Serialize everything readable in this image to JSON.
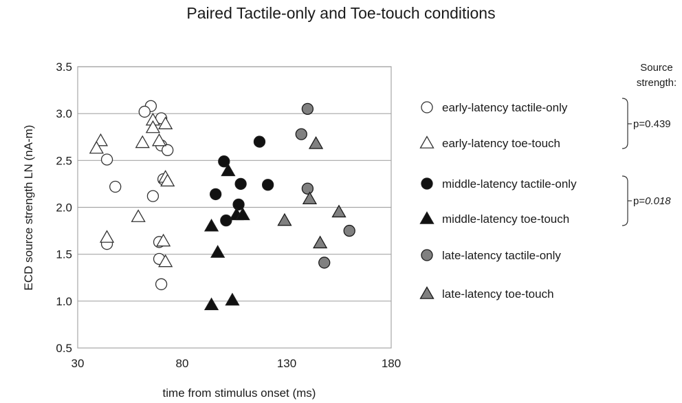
{
  "chart_data": {
    "type": "scatter",
    "title": "Paired Tactile-only and Toe-touch conditions",
    "xlabel": "time from stimulus onset (ms)",
    "ylabel": "ECD source strength LN (nA-m)",
    "xlim": [
      30,
      180
    ],
    "ylim": [
      0.5,
      3.5
    ],
    "xticks": [
      "30",
      "80",
      "130",
      "180"
    ],
    "yticks": [
      "0.5",
      "1.0",
      "1.5",
      "2.0",
      "2.5",
      "3.0",
      "3.5"
    ],
    "grid": "horizontal",
    "legend_position": "right",
    "series": [
      {
        "name": "early-latency tactile-only",
        "marker": "circle",
        "color": "#ffffff",
        "points": [
          [
            65,
            3.08
          ],
          [
            62,
            3.02
          ],
          [
            70,
            2.95
          ],
          [
            70,
            2.66
          ],
          [
            73,
            2.61
          ],
          [
            44,
            2.51
          ],
          [
            48,
            2.22
          ],
          [
            71,
            2.3
          ],
          [
            66,
            2.12
          ],
          [
            44,
            1.61
          ],
          [
            69,
            1.63
          ],
          [
            69,
            1.45
          ],
          [
            70,
            1.18
          ]
        ]
      },
      {
        "name": "early-latency toe-touch",
        "marker": "triangle",
        "color": "#ffffff",
        "points": [
          [
            66,
            2.93
          ],
          [
            72,
            2.89
          ],
          [
            66,
            2.85
          ],
          [
            41,
            2.71
          ],
          [
            69,
            2.71
          ],
          [
            61,
            2.69
          ],
          [
            39,
            2.63
          ],
          [
            72,
            2.32
          ],
          [
            73,
            2.28
          ],
          [
            59,
            1.9
          ],
          [
            44,
            1.68
          ],
          [
            71,
            1.64
          ],
          [
            72,
            1.42
          ]
        ]
      },
      {
        "name": "middle-latency tactile-only",
        "marker": "circle",
        "color": "#111111",
        "points": [
          [
            117,
            2.7
          ],
          [
            100,
            2.49
          ],
          [
            96,
            2.14
          ],
          [
            108,
            2.25
          ],
          [
            121,
            2.24
          ],
          [
            107,
            2.03
          ],
          [
            101,
            1.86
          ]
        ]
      },
      {
        "name": "middle-latency toe-touch",
        "marker": "triangle",
        "color": "#111111",
        "points": [
          [
            102,
            2.39
          ],
          [
            106,
            1.92
          ],
          [
            109,
            1.92
          ],
          [
            94,
            1.8
          ],
          [
            97,
            1.52
          ],
          [
            104,
            1.01
          ],
          [
            94,
            0.96
          ]
        ]
      },
      {
        "name": "late-latency tactile-only",
        "marker": "circle",
        "color": "#808080",
        "points": [
          [
            140,
            3.05
          ],
          [
            137,
            2.78
          ],
          [
            140,
            2.2
          ],
          [
            160,
            1.75
          ],
          [
            148,
            1.41
          ]
        ]
      },
      {
        "name": "late-latency toe-touch",
        "marker": "triangle",
        "color": "#808080",
        "points": [
          [
            144,
            2.68
          ],
          [
            141,
            2.09
          ],
          [
            155,
            1.95
          ],
          [
            129,
            1.86
          ],
          [
            146,
            1.62
          ]
        ]
      }
    ],
    "annotations": {
      "header_line1": "Source",
      "header_line2": "strength:",
      "early_p": "p=0.439",
      "middle_p_prefix": "p=",
      "middle_p_value": "0.018"
    }
  }
}
